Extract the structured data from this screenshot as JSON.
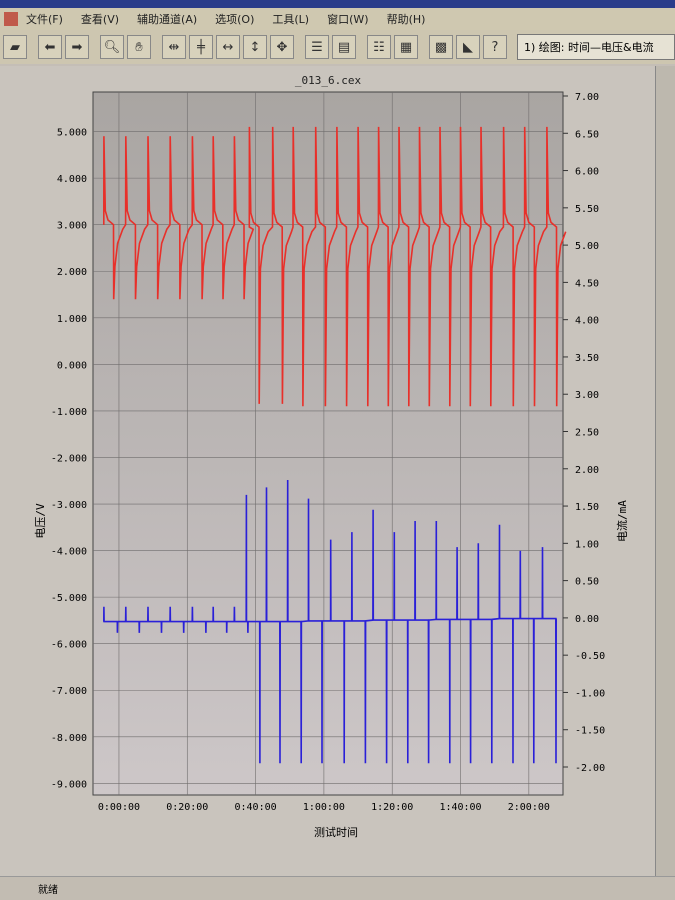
{
  "menu": [
    "文件(F)",
    "查看(V)",
    "辅助通道(A)",
    "选项(O)",
    "工具(L)",
    "窗口(W)",
    "帮助(H)"
  ],
  "toolbar": {
    "icons": [
      "open-icon",
      "back-icon",
      "forward-icon",
      "zoom-icon",
      "pan-icon",
      "x-shrink-icon",
      "x-expand-icon",
      "fit-x-icon",
      "fit-y-icon",
      "fit-all-icon",
      "channel-list-icon",
      "channel-copy-icon",
      "layer-icon",
      "layer-copy-icon",
      "grid-icon",
      "curve-icon",
      "help-icon"
    ],
    "plot_select": "1) 绘图: 时间—电压&电流"
  },
  "status": "就绪",
  "chart_data": {
    "type": "line",
    "title": "_013_6.cex",
    "xlabel": "测试时间",
    "ylabel_left": "电压/V",
    "ylabel_right": "电流/mA",
    "x_ticks": [
      "0:00:00",
      "0:20:00",
      "0:40:00",
      "1:00:00",
      "1:20:00",
      "1:40:00",
      "2:00:00"
    ],
    "xlim_minutes": [
      -7.6,
      130
    ],
    "y_left_ticks": [
      "5.000",
      "4.000",
      "3.000",
      "2.000",
      "1.000",
      "0.000",
      "-1.000",
      "-2.000",
      "-3.000",
      "-4.000",
      "-5.000",
      "-6.000",
      "-7.000",
      "-8.000",
      "-9.000"
    ],
    "ylim_left": [
      -9.25,
      5.85
    ],
    "y_right_ticks": [
      "7.00",
      "6.50",
      "6.00",
      "5.50",
      "5.00",
      "4.50",
      "4.00",
      "3.50",
      "3.00",
      "2.50",
      "2.00",
      "1.50",
      "1.00",
      "0.50",
      "0.00",
      "-0.50",
      "-1.00",
      "-1.50",
      "-2.00"
    ],
    "ylim_right": [
      -2.0,
      7.0
    ],
    "grid": true,
    "colors": {
      "voltage": "#e8302a",
      "current": "#2a20d8",
      "plot_bg_top": "#a9a5a2",
      "plot_bg_bottom": "#cdc7c8"
    },
    "series": [
      {
        "axis": "left",
        "pulses_min": [
          -4.4,
          2,
          8.5,
          15,
          21.5,
          27.6,
          33.8,
          38.2,
          45,
          51,
          57.6,
          63.8,
          70,
          76,
          82,
          88,
          94,
          100,
          106,
          112.6,
          118.8,
          125.3
        ],
        "rest_V": [
          3.0,
          3.0,
          3.0,
          3.0,
          3.0,
          3.0,
          3.0,
          2.95,
          2.95,
          2.95,
          2.95,
          2.95,
          2.95,
          2.95,
          2.95,
          2.95,
          2.95,
          2.95,
          2.95,
          2.95,
          2.95,
          2.95
        ],
        "high_V": [
          4.9,
          4.9,
          4.9,
          4.9,
          4.9,
          4.9,
          4.9,
          5.1,
          5.1,
          5.1,
          5.1,
          5.1,
          5.1,
          5.1,
          5.1,
          5.1,
          5.1,
          5.1,
          5.1,
          5.1,
          5.1,
          5.1
        ],
        "low_V": [
          1.4,
          1.4,
          1.4,
          1.4,
          1.4,
          1.4,
          1.4,
          -0.85,
          -0.85,
          -0.9,
          -0.9,
          -0.9,
          -0.9,
          -0.9,
          -0.9,
          -0.9,
          -0.9,
          -0.9,
          -0.9,
          -0.9,
          -0.9,
          -0.9
        ]
      },
      {
        "axis": "right",
        "pulses_min": [
          -4.4,
          2,
          8.5,
          15,
          21.5,
          27.6,
          33.8,
          37.3,
          43.2,
          49.4,
          55.5,
          62,
          68.2,
          74.4,
          80.6,
          86.7,
          92.9,
          99,
          105.2,
          111.4,
          117.5,
          124
        ],
        "pos_mA": [
          0.15,
          0.15,
          0.15,
          0.15,
          0.15,
          0.15,
          0.15,
          1.65,
          1.75,
          1.85,
          1.6,
          1.05,
          1.15,
          1.45,
          1.15,
          1.3,
          1.3,
          0.95,
          1.0,
          1.25,
          0.9,
          0.95
        ],
        "neg_mA": [
          -0.2,
          -0.2,
          -0.2,
          -0.2,
          -0.2,
          -0.2,
          -0.2,
          -1.95,
          -1.95,
          -1.95,
          -1.95,
          -1.95,
          -1.95,
          -1.95,
          -1.95,
          -1.95,
          -1.95,
          -1.95,
          -1.95,
          -1.95,
          -1.95,
          -1.95
        ],
        "rest_mA": [
          -0.05,
          -0.05,
          -0.05,
          -0.05,
          -0.05,
          -0.05,
          -0.05,
          -0.05,
          -0.05,
          -0.05,
          -0.04,
          -0.04,
          -0.04,
          -0.03,
          -0.03,
          -0.03,
          -0.02,
          -0.02,
          -0.02,
          -0.01,
          -0.01,
          -0.01
        ]
      }
    ]
  }
}
